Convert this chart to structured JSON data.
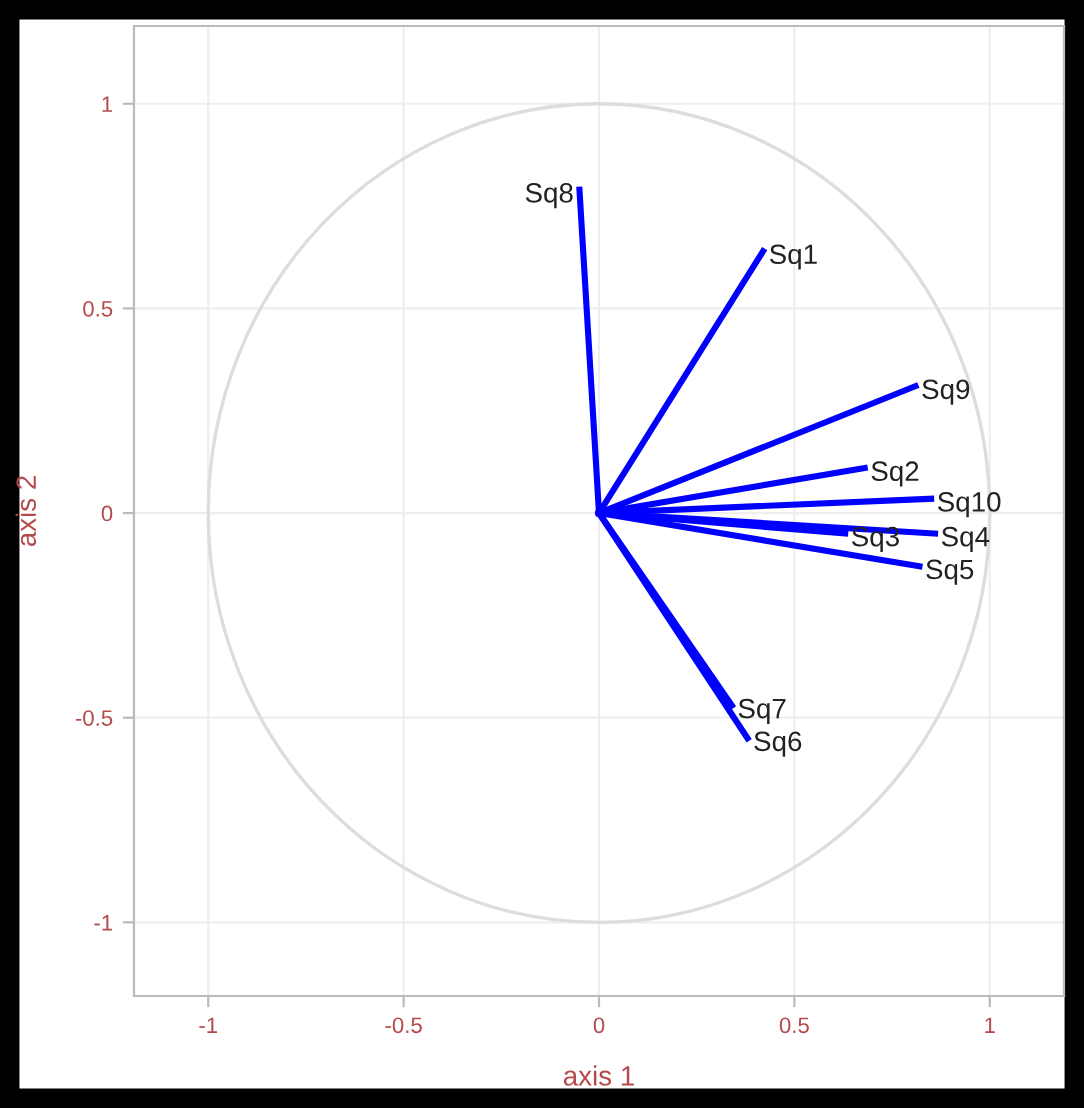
{
  "chart_data": {
    "type": "line",
    "xlabel": "axis 1",
    "ylabel": "axis 2",
    "xlim": [
      -1.19,
      1.19
    ],
    "ylim": [
      -1.18,
      1.19
    ],
    "xticks": [
      -1,
      -0.5,
      0,
      0.5,
      1
    ],
    "yticks": [
      -1,
      -0.5,
      0,
      0.5,
      1
    ],
    "grid": true,
    "legend": false,
    "marker": "none",
    "line_style": "solid",
    "series": [
      {
        "name": "Sq1",
        "color": "#0000ff",
        "x": [
          0,
          0.42
        ],
        "values": [
          0,
          0.64
        ]
      },
      {
        "name": "Sq2",
        "color": "#0000ff",
        "x": [
          0,
          0.68
        ],
        "values": [
          0,
          0.11
        ]
      },
      {
        "name": "Sq3",
        "color": "#0000ff",
        "x": [
          0,
          0.63
        ],
        "values": [
          0,
          -0.05
        ]
      },
      {
        "name": "Sq4",
        "color": "#0000ff",
        "x": [
          0,
          0.86
        ],
        "values": [
          0,
          -0.05
        ]
      },
      {
        "name": "Sq5",
        "color": "#0000ff",
        "x": [
          0,
          0.82
        ],
        "values": [
          0,
          -0.13
        ]
      },
      {
        "name": "Sq6",
        "color": "#0000ff",
        "x": [
          0,
          0.38
        ],
        "values": [
          0,
          -0.55
        ]
      },
      {
        "name": "Sq7",
        "color": "#0000ff",
        "x": [
          0,
          0.34
        ],
        "values": [
          0,
          -0.47
        ]
      },
      {
        "name": "Sq8",
        "color": "#0000ff",
        "x": [
          0,
          -0.05
        ],
        "values": [
          0,
          0.79
        ]
      },
      {
        "name": "Sq9",
        "color": "#0000ff",
        "x": [
          0,
          0.81
        ],
        "values": [
          0,
          0.31
        ]
      },
      {
        "name": "Sq10",
        "color": "#0000ff",
        "x": [
          0,
          0.85
        ],
        "values": [
          0,
          0.035
        ]
      }
    ]
  }
}
